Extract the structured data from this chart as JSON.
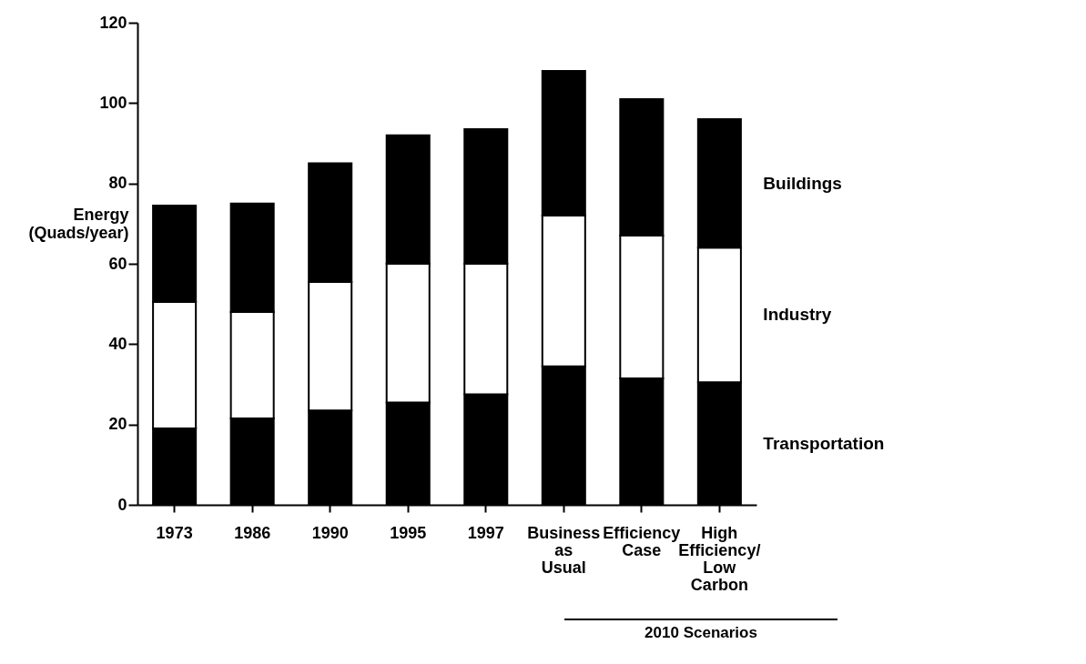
{
  "chart_data": {
    "type": "bar",
    "stacked": true,
    "ylabel": "Energy (Quads/year)",
    "categories": [
      "1973",
      "1986",
      "1990",
      "1995",
      "1997",
      "Business as Usual",
      "Efficiency Case",
      "High Efficiency/ Low Carbon"
    ],
    "series": [
      {
        "name": "Transportation",
        "color": "#000000",
        "values": [
          19,
          21.5,
          23.5,
          25.5,
          27.5,
          34.5,
          31.5,
          30.5
        ]
      },
      {
        "name": "Industry",
        "color": "#ffffff",
        "values": [
          31.5,
          26.5,
          32,
          34.5,
          32.5,
          37.5,
          35.5,
          33.5
        ]
      },
      {
        "name": "Buildings",
        "color": "#000000",
        "values": [
          24,
          27,
          29.5,
          32,
          33.5,
          36,
          34,
          32
        ]
      }
    ],
    "ylim": [
      0,
      120
    ],
    "yticks": [
      0,
      20,
      40,
      60,
      80,
      100,
      120
    ],
    "grid": false,
    "legend": false,
    "annotations": [
      "2010 Scenarios"
    ]
  }
}
